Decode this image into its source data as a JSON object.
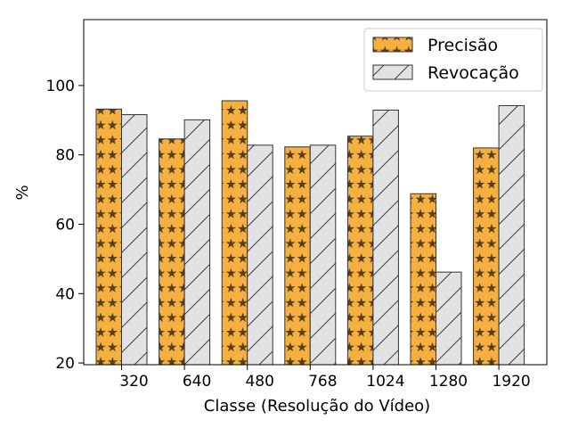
{
  "chart_data": {
    "type": "bar",
    "categories": [
      "320",
      "640",
      "480",
      "768",
      "1024",
      "1280",
      "1920"
    ],
    "series": [
      {
        "name": "Precisão",
        "values": [
          93.2,
          84.6,
          95.6,
          82.3,
          85.4,
          68.8,
          82.0
        ],
        "color": "#F5B041",
        "hatch": "stars"
      },
      {
        "name": "Revocação",
        "values": [
          91.6,
          90.1,
          82.8,
          82.8,
          92.9,
          46.2,
          94.2
        ],
        "color": "#E2E2E4",
        "hatch": "diagonal"
      }
    ],
    "title": "",
    "xlabel": "Classe (Resolução do Vídeo)",
    "ylabel": "%",
    "ylim": [
      19.5,
      119
    ],
    "yticks": [
      20,
      40,
      60,
      80,
      100
    ],
    "grid": false,
    "legend_position": "top-right"
  }
}
